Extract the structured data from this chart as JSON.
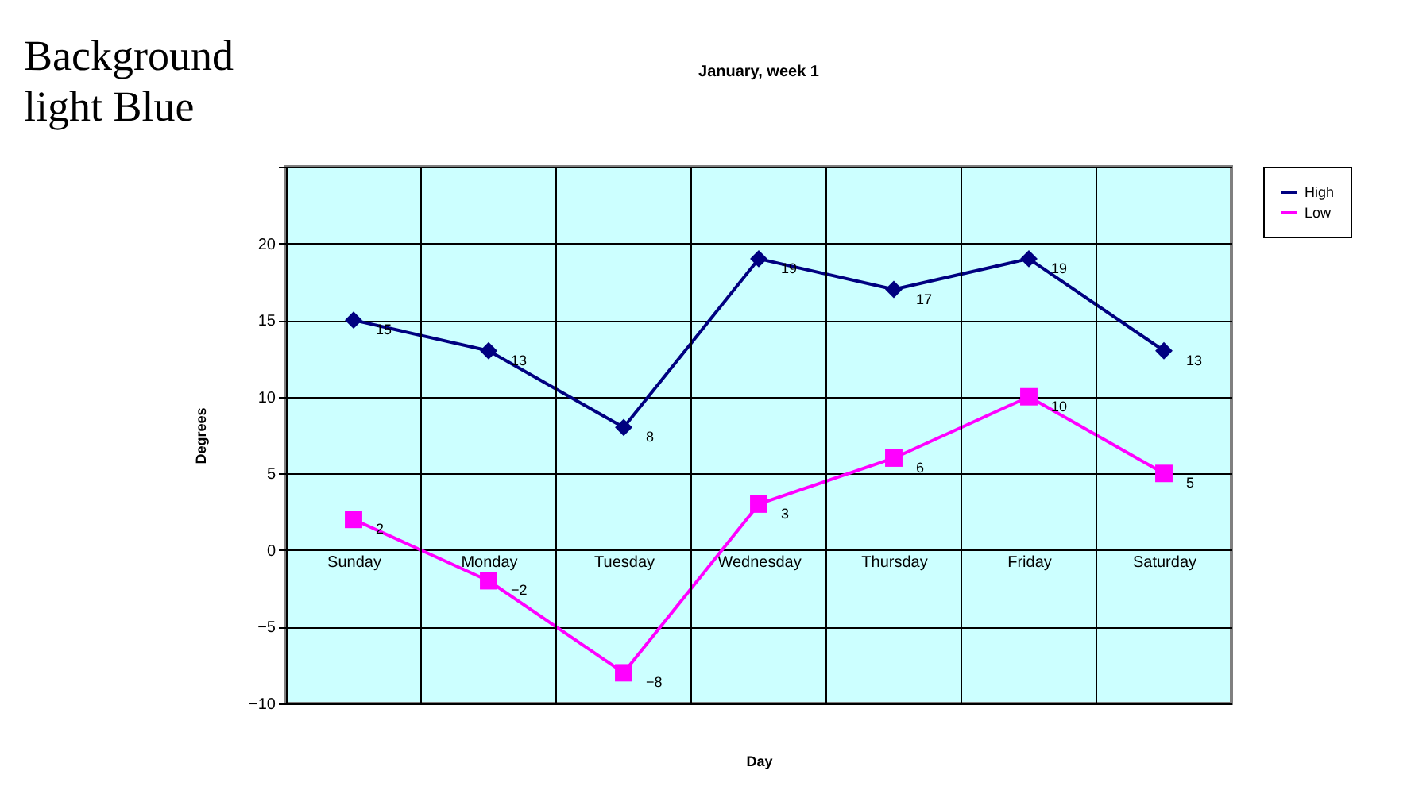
{
  "chart_data": {
    "type": "line",
    "title": "January, week 1",
    "xlabel": "Day",
    "ylabel": "Degrees",
    "categories": [
      "Sunday",
      "Monday",
      "Tuesday",
      "Wednesday",
      "Thursday",
      "Friday",
      "Saturday"
    ],
    "series": [
      {
        "name": "High",
        "color": "#000080",
        "marker": "diamond",
        "values": [
          15,
          13,
          8,
          19,
          17,
          19,
          13
        ]
      },
      {
        "name": "Low",
        "color": "#ff00ff",
        "marker": "square",
        "values": [
          2,
          -2,
          -8,
          3,
          6,
          10,
          5
        ]
      }
    ],
    "ylim": [
      -10,
      25
    ],
    "yticks": [
      -10,
      -5,
      0,
      5,
      10,
      15,
      20,
      {
        "value": 25,
        "label": null
      }
    ],
    "grid": true,
    "legend": "right",
    "data_labels": true,
    "line_style": "solid",
    "annotations": [
      "Background\nlight Blue"
    ]
  }
}
